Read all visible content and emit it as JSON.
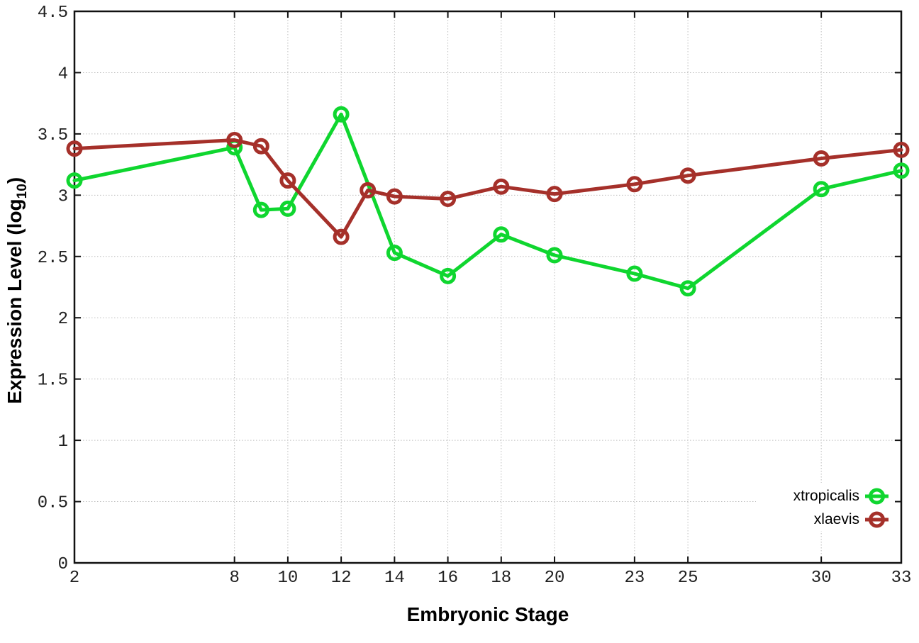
{
  "chart_data": {
    "type": "line",
    "title": "",
    "xlabel": "Embryonic Stage",
    "ylabel": "Expression Level (log10)",
    "ylabel_main": "Expression Level (log",
    "ylabel_sub": "10",
    "ylabel_end": ")",
    "xlim": [
      2,
      33
    ],
    "ylim": [
      0,
      4.5
    ],
    "x_tick_labels": [
      "2",
      "8",
      "10",
      "12",
      "14",
      "16",
      "18",
      "20",
      "23",
      "25",
      "30",
      "33"
    ],
    "x_tick_values": [
      2,
      8,
      10,
      12,
      14,
      16,
      18,
      20,
      23,
      25,
      30,
      33
    ],
    "y_tick_labels": [
      "0",
      "0.5",
      "1",
      "1.5",
      "2",
      "2.5",
      "3",
      "3.5",
      "4",
      "4.5"
    ],
    "y_tick_values": [
      0,
      0.5,
      1,
      1.5,
      2,
      2.5,
      3,
      3.5,
      4,
      4.5
    ],
    "grid": true,
    "legend_position": "inside-bottom-right",
    "marker": "open-circle",
    "series": [
      {
        "name": "xtropicalis",
        "color": "#0fd62f",
        "x": [
          2,
          8,
          9,
          10,
          12,
          14,
          16,
          18,
          20,
          23,
          25,
          30,
          33
        ],
        "y": [
          3.12,
          3.39,
          2.88,
          2.89,
          3.66,
          2.53,
          2.34,
          2.68,
          2.51,
          2.36,
          2.24,
          3.05,
          3.2
        ]
      },
      {
        "name": "xlaevis",
        "color": "#a5302a",
        "x": [
          2,
          8,
          9,
          10,
          12,
          13,
          14,
          16,
          18,
          20,
          23,
          25,
          30,
          33
        ],
        "y": [
          3.38,
          3.45,
          3.4,
          3.12,
          2.66,
          3.04,
          2.99,
          2.97,
          3.07,
          3.01,
          3.09,
          3.16,
          3.3,
          3.37
        ]
      }
    ],
    "colors": {
      "background": "#ffffff",
      "axis": "#111111",
      "grid": "#bdbdbd",
      "tick_text": "#202020"
    }
  }
}
